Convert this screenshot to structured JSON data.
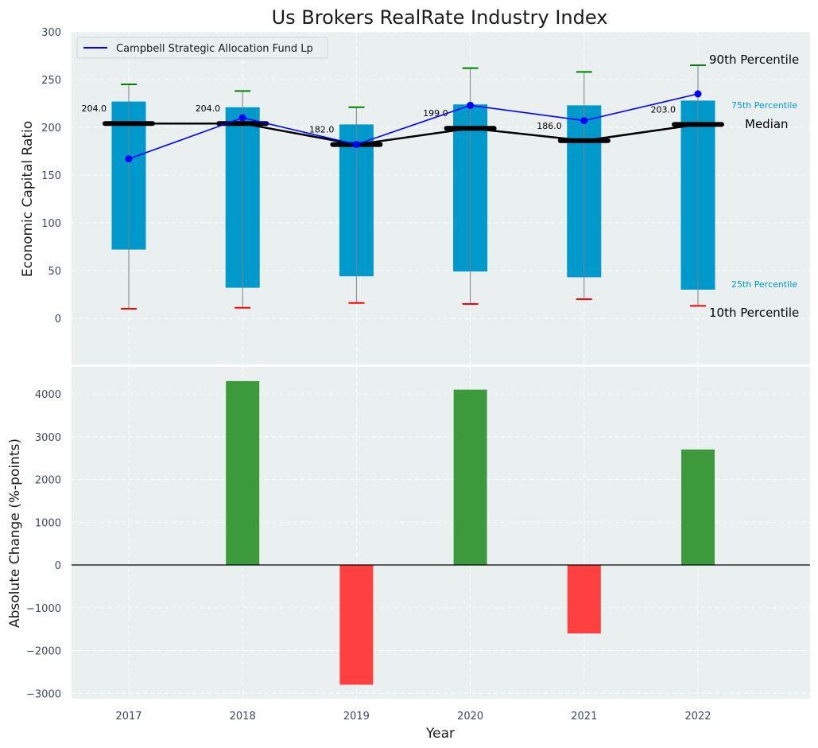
{
  "chart_data": [
    {
      "type": "bar",
      "title": "Us Brokers RealRate Industry Index",
      "ylabel": "Economic Capital Ratio",
      "ylim": [
        -50,
        300
      ],
      "yticks": [
        "0",
        "50",
        "100",
        "150",
        "200",
        "250",
        "300"
      ],
      "categories": [
        "2017",
        "2018",
        "2019",
        "2020",
        "2021",
        "2022"
      ],
      "p25": [
        72,
        32,
        44,
        49,
        43,
        30
      ],
      "p75": [
        227,
        221,
        203,
        224,
        223,
        228
      ],
      "p10": [
        10,
        11,
        16,
        15,
        20,
        13
      ],
      "p90": [
        245,
        238,
        221,
        262,
        258,
        265
      ],
      "median": [
        204.0,
        204.0,
        182.0,
        199.0,
        186.0,
        203.0
      ],
      "median_labels": [
        "204.0",
        "204.0",
        "182.0",
        "199.0",
        "186.0",
        "203.0"
      ],
      "series": [
        {
          "name": "Campbell Strategic Allocation Fund Lp",
          "values": [
            167,
            210,
            182,
            223,
            207,
            235
          ]
        }
      ],
      "annotations": {
        "p90": "90th Percentile",
        "p75": "75th Percentile",
        "median": "Median",
        "p25": "25th Percentile",
        "p10": "10th Percentile"
      },
      "legend": "top-left",
      "grid": true
    },
    {
      "type": "bar",
      "xlabel": "Year",
      "ylabel": "Absolute Change (%-points)",
      "ylim": [
        -3100,
        4700
      ],
      "yticks": [
        "−3000",
        "−2000",
        "−1000",
        "0",
        "1000",
        "2000",
        "3000",
        "4000"
      ],
      "categories": [
        "2017",
        "2018",
        "2019",
        "2020",
        "2021",
        "2022"
      ],
      "values": [
        0,
        4300,
        -2800,
        4100,
        -1600,
        2700
      ],
      "grid": true
    }
  ],
  "colors": {
    "background": "#eaeff0",
    "box": "#0099cc",
    "fund_line": "#0000ff",
    "median_line": "#000000",
    "p90_cap": "#008000",
    "p10_cap": "#ff0000",
    "whisker": "#808080",
    "positive": "#3c9a3c",
    "negative": "#ff4040"
  }
}
